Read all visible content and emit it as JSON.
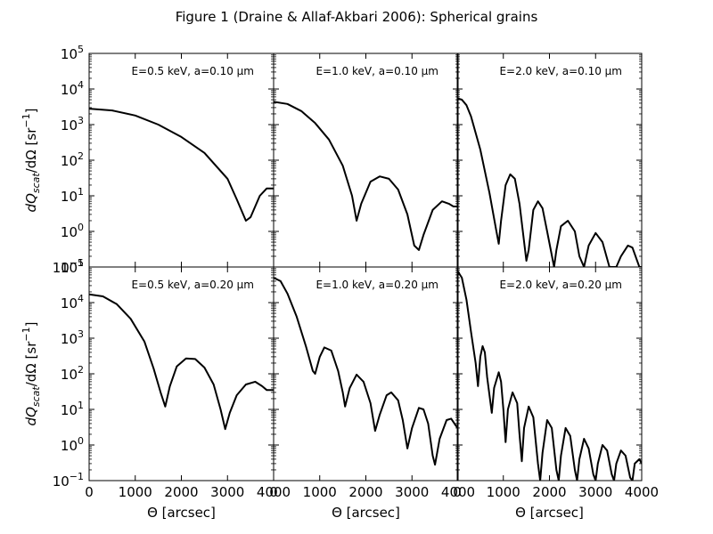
{
  "title": "Figure 1 (Draine & Allaf-Akbari 2006): Spherical grains",
  "chart_data": {
    "type": "line",
    "title": "Figure 1 (Draine & Allaf-Akbari 2006): Spherical grains",
    "xlabel": "Θ [arcsec]",
    "ylabel": "dQ_{scat}/dΩ [sr^{-1}]",
    "ylabel_parts": {
      "main": "dQ",
      "sub": "scat",
      "mid": "/dΩ [sr",
      "sup": "−1",
      "end": "]"
    },
    "xlim": [
      0,
      4000
    ],
    "ylim": [
      0.1,
      100000
    ],
    "yscale": "log",
    "xticks": [
      0,
      1000,
      2000,
      3000,
      4000
    ],
    "xtick_labels": [
      "0",
      "1000",
      "2000",
      "3000",
      "4000"
    ],
    "yticks": [
      0.1,
      1,
      10,
      100,
      1000,
      10000,
      100000
    ],
    "ytick_labels": [
      {
        "base": "10",
        "exp": "−1"
      },
      {
        "base": "10",
        "exp": "0"
      },
      {
        "base": "10",
        "exp": "1"
      },
      {
        "base": "10",
        "exp": "2"
      },
      {
        "base": "10",
        "exp": "3"
      },
      {
        "base": "10",
        "exp": "4"
      },
      {
        "base": "10",
        "exp": "5"
      }
    ],
    "line_color": "#000000",
    "grid": false,
    "panels": [
      {
        "label": "E=0.5 keV, a=0.10 μm",
        "energy_keV": 0.5,
        "a_um": 0.1,
        "points": [
          [
            0,
            2800
          ],
          [
            500,
            2500
          ],
          [
            1000,
            1800
          ],
          [
            1500,
            1000
          ],
          [
            2000,
            450
          ],
          [
            2500,
            160
          ],
          [
            3000,
            30
          ],
          [
            3200,
            8
          ],
          [
            3400,
            2
          ],
          [
            3500,
            2.5
          ],
          [
            3700,
            10
          ],
          [
            3850,
            16
          ],
          [
            4000,
            16
          ]
        ]
      },
      {
        "label": "E=1.0 keV, a=0.10 μm",
        "energy_keV": 1.0,
        "a_um": 0.1,
        "points": [
          [
            0,
            4400
          ],
          [
            300,
            3800
          ],
          [
            600,
            2400
          ],
          [
            900,
            1100
          ],
          [
            1200,
            380
          ],
          [
            1500,
            70
          ],
          [
            1700,
            10
          ],
          [
            1800,
            2
          ],
          [
            1900,
            6
          ],
          [
            2100,
            25
          ],
          [
            2300,
            35
          ],
          [
            2500,
            30
          ],
          [
            2700,
            15
          ],
          [
            2900,
            3
          ],
          [
            3050,
            0.4
          ],
          [
            3150,
            0.3
          ],
          [
            3250,
            0.8
          ],
          [
            3450,
            4
          ],
          [
            3650,
            7
          ],
          [
            3800,
            6
          ],
          [
            3900,
            5
          ],
          [
            4000,
            5
          ]
        ]
      },
      {
        "label": "E=2.0 keV, a=0.10 μm",
        "energy_keV": 2.0,
        "a_um": 0.1,
        "points": [
          [
            0,
            5500
          ],
          [
            100,
            5000
          ],
          [
            200,
            3500
          ],
          [
            300,
            1700
          ],
          [
            500,
            200
          ],
          [
            700,
            12
          ],
          [
            850,
            1
          ],
          [
            900,
            0.45
          ],
          [
            950,
            2
          ],
          [
            1050,
            20
          ],
          [
            1150,
            40
          ],
          [
            1250,
            30
          ],
          [
            1350,
            6
          ],
          [
            1500,
            0.15
          ],
          [
            1550,
            0.3
          ],
          [
            1650,
            4
          ],
          [
            1750,
            7
          ],
          [
            1850,
            4.5
          ],
          [
            1950,
            1
          ],
          [
            2100,
            0.1
          ],
          [
            2150,
            0.3
          ],
          [
            2250,
            1.4
          ],
          [
            2400,
            2
          ],
          [
            2550,
            1
          ],
          [
            2650,
            0.2
          ],
          [
            2750,
            0.1
          ],
          [
            2850,
            0.4
          ],
          [
            3000,
            0.9
          ],
          [
            3150,
            0.5
          ],
          [
            3300,
            0.1
          ],
          [
            3450,
            0.1
          ],
          [
            3550,
            0.2
          ],
          [
            3700,
            0.4
          ],
          [
            3800,
            0.35
          ],
          [
            3950,
            0.1
          ],
          [
            4000,
            0.1
          ]
        ]
      },
      {
        "label": "E=0.5 keV, a=0.20 μm",
        "energy_keV": 0.5,
        "a_um": 0.2,
        "points": [
          [
            0,
            17000
          ],
          [
            300,
            15000
          ],
          [
            600,
            9000
          ],
          [
            900,
            3500
          ],
          [
            1200,
            800
          ],
          [
            1400,
            140
          ],
          [
            1550,
            30
          ],
          [
            1650,
            12
          ],
          [
            1750,
            45
          ],
          [
            1900,
            160
          ],
          [
            2100,
            270
          ],
          [
            2300,
            260
          ],
          [
            2500,
            150
          ],
          [
            2700,
            50
          ],
          [
            2850,
            10
          ],
          [
            2950,
            2.8
          ],
          [
            3050,
            8
          ],
          [
            3200,
            25
          ],
          [
            3400,
            50
          ],
          [
            3600,
            60
          ],
          [
            3750,
            45
          ],
          [
            3850,
            35
          ],
          [
            4000,
            35
          ]
        ]
      },
      {
        "label": "E=1.0 keV, a=0.20 μm",
        "energy_keV": 1.0,
        "a_um": 0.2,
        "points": [
          [
            0,
            50000
          ],
          [
            150,
            40000
          ],
          [
            300,
            18000
          ],
          [
            500,
            4000
          ],
          [
            700,
            600
          ],
          [
            850,
            120
          ],
          [
            900,
            100
          ],
          [
            1000,
            300
          ],
          [
            1100,
            550
          ],
          [
            1250,
            450
          ],
          [
            1400,
            120
          ],
          [
            1500,
            30
          ],
          [
            1550,
            12
          ],
          [
            1650,
            40
          ],
          [
            1800,
            95
          ],
          [
            1950,
            60
          ],
          [
            2100,
            15
          ],
          [
            2200,
            2.5
          ],
          [
            2300,
            7
          ],
          [
            2450,
            25
          ],
          [
            2550,
            30
          ],
          [
            2700,
            18
          ],
          [
            2800,
            5
          ],
          [
            2900,
            0.8
          ],
          [
            3000,
            3
          ],
          [
            3150,
            11
          ],
          [
            3250,
            10
          ],
          [
            3350,
            4
          ],
          [
            3450,
            0.5
          ],
          [
            3500,
            0.28
          ],
          [
            3600,
            1.5
          ],
          [
            3750,
            5
          ],
          [
            3850,
            5.5
          ],
          [
            3950,
            3.5
          ],
          [
            4000,
            3
          ]
        ]
      },
      {
        "label": "E=2.0 keV, a=0.20 μm",
        "energy_keV": 2.0,
        "a_um": 0.2,
        "points": [
          [
            0,
            80000
          ],
          [
            100,
            50000
          ],
          [
            200,
            12000
          ],
          [
            300,
            1500
          ],
          [
            400,
            200
          ],
          [
            450,
            45
          ],
          [
            500,
            300
          ],
          [
            550,
            600
          ],
          [
            600,
            400
          ],
          [
            650,
            80
          ],
          [
            750,
            8
          ],
          [
            800,
            40
          ],
          [
            900,
            110
          ],
          [
            950,
            60
          ],
          [
            1000,
            10
          ],
          [
            1050,
            1.2
          ],
          [
            1100,
            10
          ],
          [
            1200,
            30
          ],
          [
            1300,
            15
          ],
          [
            1350,
            2
          ],
          [
            1400,
            0.35
          ],
          [
            1450,
            3
          ],
          [
            1550,
            12
          ],
          [
            1650,
            6
          ],
          [
            1750,
            0.3
          ],
          [
            1800,
            0.1
          ],
          [
            1850,
            0.6
          ],
          [
            1950,
            5
          ],
          [
            2050,
            3
          ],
          [
            2150,
            0.2
          ],
          [
            2200,
            0.1
          ],
          [
            2250,
            0.5
          ],
          [
            2350,
            3
          ],
          [
            2450,
            1.8
          ],
          [
            2550,
            0.2
          ],
          [
            2600,
            0.1
          ],
          [
            2650,
            0.4
          ],
          [
            2750,
            1.5
          ],
          [
            2850,
            0.8
          ],
          [
            2950,
            0.15
          ],
          [
            3000,
            0.1
          ],
          [
            3050,
            0.3
          ],
          [
            3150,
            1
          ],
          [
            3250,
            0.7
          ],
          [
            3350,
            0.15
          ],
          [
            3400,
            0.1
          ],
          [
            3450,
            0.3
          ],
          [
            3550,
            0.7
          ],
          [
            3650,
            0.5
          ],
          [
            3750,
            0.12
          ],
          [
            3800,
            0.1
          ],
          [
            3850,
            0.3
          ],
          [
            3950,
            0.4
          ],
          [
            4000,
            0.3
          ]
        ]
      }
    ]
  }
}
